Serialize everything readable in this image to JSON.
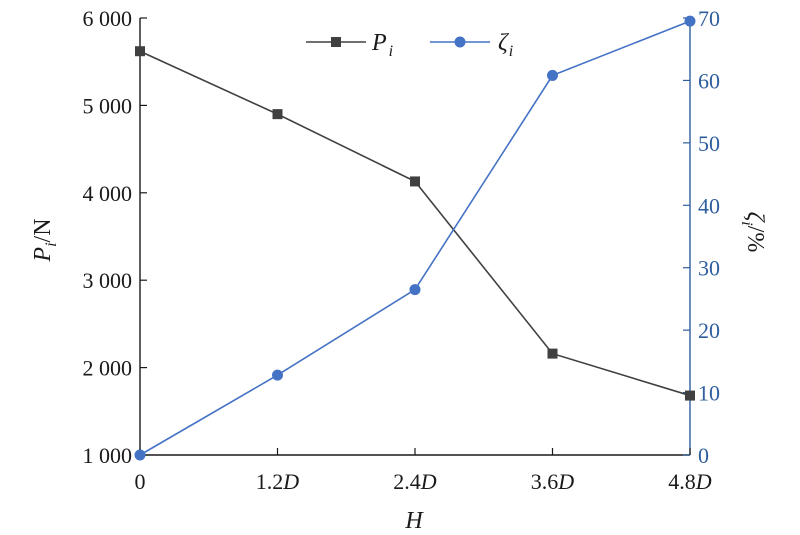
{
  "colors": {
    "left_axis": "#1a1a1a",
    "right_axis": "#2e5e9e",
    "series_P": "#404040",
    "series_zeta": "#4472c4"
  },
  "chart_data": {
    "type": "line",
    "x": [
      "0",
      "1.2D",
      "2.4D",
      "3.6D",
      "4.8D"
    ],
    "x_tick_labels": [
      {
        "num": "0",
        "unit": ""
      },
      {
        "num": "1.2",
        "unit": "D"
      },
      {
        "num": "2.4",
        "unit": "D"
      },
      {
        "num": "3.6",
        "unit": "D"
      },
      {
        "num": "4.8",
        "unit": "D"
      }
    ],
    "xlabel": "H",
    "y_left": {
      "label_main": "P",
      "label_sub": "i",
      "label_unit": "/N",
      "ylim": [
        1000,
        6000
      ],
      "ticks": [
        1000,
        2000,
        3000,
        4000,
        5000,
        6000
      ],
      "tick_labels": [
        "1 000",
        "2 000",
        "3 000",
        "4 000",
        "5 000",
        "6 000"
      ]
    },
    "y_right": {
      "label_main": "ζ",
      "label_sub": "i",
      "label_unit": "/%",
      "ylim": [
        0,
        70
      ],
      "ticks": [
        0,
        10,
        20,
        30,
        40,
        50,
        60,
        70
      ],
      "tick_labels": [
        "0",
        "10",
        "20",
        "30",
        "40",
        "50",
        "60",
        "70"
      ]
    },
    "series": [
      {
        "name_main": "P",
        "name_sub": "i",
        "axis": "left",
        "marker": "square",
        "values": [
          5620,
          4900,
          4130,
          2160,
          1680
        ]
      },
      {
        "name_main": "ζ",
        "name_sub": "i",
        "axis": "right",
        "marker": "circle",
        "values": [
          0,
          12.8,
          26.5,
          60.8,
          69.5
        ]
      }
    ],
    "legend_position": "top-center",
    "grid": false
  }
}
